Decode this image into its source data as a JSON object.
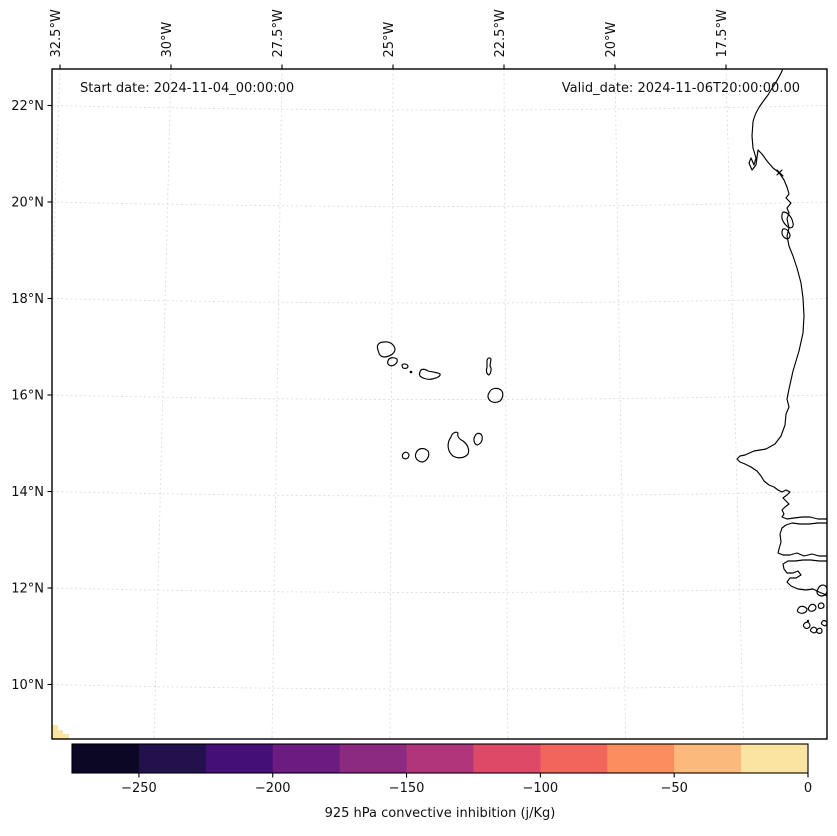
{
  "annotations": {
    "start_date": "Start date: 2024-11-04_00:00:00",
    "valid_date": "Valid_date: 2024-11-06T20:00:00.00"
  },
  "axes": {
    "x_tick_labels": [
      "32.5°W",
      "30°W",
      "27.5°W",
      "25°W",
      "22.5°W",
      "20°W",
      "17.5°W"
    ],
    "y_tick_labels": [
      "22°N",
      "20°N",
      "18°N",
      "16°N",
      "14°N",
      "12°N",
      "10°N"
    ]
  },
  "colorbar": {
    "label": "925 hPa convective inhibition (j/Kg)",
    "tick_labels": [
      "−250",
      "−200",
      "−150",
      "−100",
      "−50",
      "0"
    ],
    "tick_values": [
      -250,
      -200,
      -150,
      -100,
      -50,
      0
    ],
    "range": [
      -275,
      0
    ],
    "segment_colors": [
      "#0b0724",
      "#23114e",
      "#440f76",
      "#6a1c81",
      "#8c2981",
      "#b0357b",
      "#de4968",
      "#f2655c",
      "#fa8e5f",
      "#fcb97c",
      "#fbe3a2"
    ]
  },
  "colors": {
    "coastline": "#000000",
    "gridline": "#dcdcdc",
    "background": "#ffffff",
    "text": "#111111",
    "cin_patch": "#fbe3a2"
  },
  "chart_data": {
    "type": "heatmap",
    "subtype": "filled-contour geographic map (West Africa / Cape Verde region)",
    "title": "",
    "annotations": [
      "Start date: 2024-11-04_00:00:00",
      "Valid_date: 2024-11-06T20:00:00.00"
    ],
    "x_tick_labels": [
      "32.5°W",
      "30°W",
      "27.5°W",
      "25°W",
      "22.5°W",
      "20°W",
      "17.5°W"
    ],
    "y_tick_labels": [
      "22°N",
      "20°N",
      "18°N",
      "16°N",
      "14°N",
      "12°N",
      "10°N"
    ],
    "x_range_deg_west": [
      32.7,
      15.2
    ],
    "y_range_deg_north": [
      9.1,
      22.8
    ],
    "grid": true,
    "legend": false,
    "colorbar": {
      "label": "925 hPa convective inhibition (j/Kg)",
      "orientation": "horizontal",
      "ticks": [
        -250,
        -200,
        -150,
        -100,
        -50,
        0
      ],
      "range": [
        -275,
        0
      ],
      "n_segments": 11,
      "level_step": 25,
      "colors": [
        "#0b0724",
        "#23114e",
        "#440f76",
        "#6a1c81",
        "#8c2981",
        "#b0357b",
        "#de4968",
        "#f2655c",
        "#fa8e5f",
        "#fcb97c",
        "#fbe3a2"
      ]
    },
    "visible_field_values": [
      {
        "location": "bottom-left map corner, near 32.5°W 9.2°N",
        "value_bin": [
          -25,
          0
        ],
        "color": "#fbe3a2"
      }
    ],
    "map_features": [
      "Cape Verde islands",
      "West African coastline (Western Sahara to Guinea-Bissau)",
      "Cap Blanc peninsula",
      "Banc d'Arguin islets",
      "Cap Vert (Dakar) peninsula",
      "Gambia river",
      "Casamance river",
      "Bijagos archipelago"
    ]
  }
}
